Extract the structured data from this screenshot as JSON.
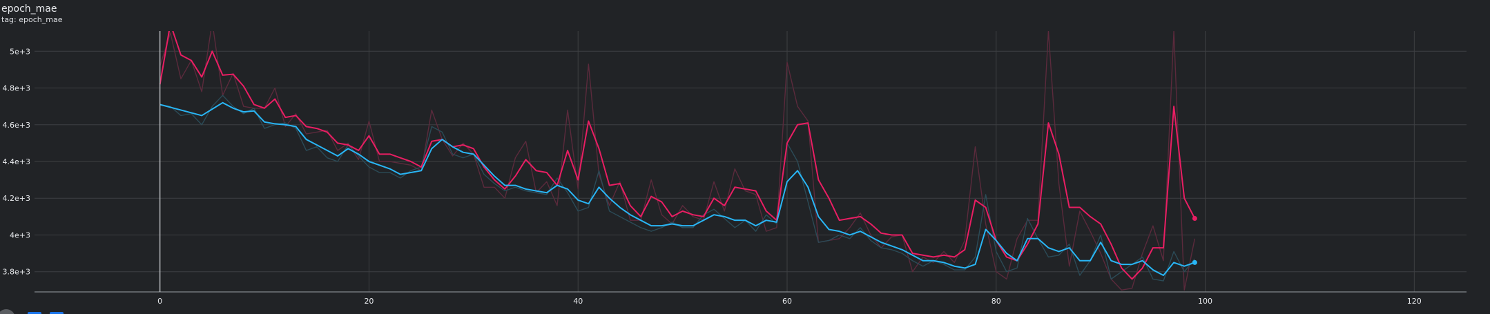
{
  "card": {
    "title": "epoch_mae",
    "subtitle": "tag: epoch_mae"
  },
  "colors": {
    "background": "#212326",
    "grid": "#3e4043",
    "axis": "#9aa0a6",
    "tick_text": "#e8eaed",
    "pink": "#e91e63",
    "cyan": "#29b6f6",
    "pink_raw": "#5b2a3c",
    "cyan_raw": "#2b4b57",
    "button_blue": "#1a73e8"
  },
  "icons": [
    "settings-icon",
    "fit-domain-icon",
    "download-icon"
  ],
  "chart_data": {
    "type": "line",
    "title": "epoch_mae",
    "xlabel": "",
    "ylabel": "",
    "xlim": [
      -12,
      125
    ],
    "ylim": [
      3690,
      5110
    ],
    "x_ticks": [
      0,
      20,
      40,
      60,
      80,
      100,
      120
    ],
    "x_tick_labels": [
      "0",
      "20",
      "40",
      "60",
      "80",
      "100",
      "120"
    ],
    "y_ticks": [
      3800,
      4000,
      4200,
      4400,
      4600,
      4800,
      5000
    ],
    "y_tick_labels": [
      "3.8e+3",
      "4e+3",
      "4.2e+3",
      "4.4e+3",
      "4.6e+3",
      "4.8e+3",
      "5e+3"
    ],
    "grid": true,
    "legend": "none",
    "series": [
      {
        "color": "#e91e63",
        "raw_color": "#5b2a3c",
        "x_start": 0,
        "smoothed": [
          4820,
          5150,
          4980,
          4950,
          4860,
          5000,
          4870,
          4875,
          4810,
          4710,
          4690,
          4740,
          4640,
          4650,
          4590,
          4580,
          4560,
          4500,
          4490,
          4460,
          4540,
          4440,
          4440,
          4420,
          4400,
          4370,
          4510,
          4520,
          4480,
          4490,
          4470,
          4370,
          4300,
          4250,
          4320,
          4410,
          4350,
          4340,
          4270,
          4460,
          4300,
          4620,
          4470,
          4270,
          4280,
          4160,
          4100,
          4210,
          4180,
          4100,
          4130,
          4110,
          4100,
          4200,
          4160,
          4260,
          4250,
          4240,
          4130,
          4080,
          4500,
          4600,
          4610,
          4300,
          4200,
          4080,
          4090,
          4100,
          4060,
          4010,
          4000,
          4000,
          3900,
          3890,
          3880,
          3890,
          3880,
          3920,
          4190,
          4150,
          3970,
          3880,
          3860,
          3950,
          4060,
          4610,
          4440,
          4150,
          4150,
          4100,
          4060,
          3950,
          3820,
          3760,
          3820,
          3930,
          3930,
          4700,
          4200,
          4090
        ],
        "raw": [
          4920,
          5100,
          4850,
          4950,
          4780,
          5160,
          4760,
          4880,
          4700,
          4690,
          4690,
          4800,
          4590,
          4660,
          4550,
          4560,
          4570,
          4460,
          4500,
          4410,
          4620,
          4400,
          4400,
          4390,
          4380,
          4350,
          4680,
          4520,
          4430,
          4500,
          4440,
          4260,
          4260,
          4200,
          4420,
          4510,
          4230,
          4290,
          4160,
          4680,
          4250,
          4930,
          4330,
          4160,
          4290,
          4080,
          4080,
          4300,
          4110,
          4060,
          4160,
          4100,
          4080,
          4290,
          4130,
          4360,
          4240,
          4220,
          4020,
          4040,
          4940,
          4700,
          4620,
          3960,
          3970,
          3980,
          4040,
          4120,
          4000,
          3930,
          3990,
          4000,
          3800,
          3880,
          3850,
          3910,
          3850,
          3970,
          4480,
          4060,
          3800,
          3760,
          3980,
          4080,
          4080,
          5110,
          4280,
          3830,
          4130,
          4020,
          3900,
          3760,
          3700,
          3710,
          3900,
          4050,
          3860,
          5110,
          3700,
          3980
        ]
      },
      {
        "color": "#29b6f6",
        "raw_color": "#2b4b57",
        "x_start": 0,
        "smoothed": [
          4710,
          4695,
          4680,
          4665,
          4650,
          4685,
          4720,
          4690,
          4670,
          4675,
          4615,
          4605,
          4600,
          4590,
          4520,
          4490,
          4460,
          4430,
          4470,
          4440,
          4400,
          4380,
          4360,
          4330,
          4340,
          4350,
          4470,
          4520,
          4480,
          4450,
          4440,
          4380,
          4320,
          4270,
          4270,
          4250,
          4240,
          4230,
          4270,
          4250,
          4190,
          4170,
          4260,
          4200,
          4150,
          4110,
          4080,
          4050,
          4050,
          4060,
          4050,
          4050,
          4080,
          4110,
          4100,
          4080,
          4080,
          4050,
          4080,
          4070,
          4290,
          4350,
          4260,
          4100,
          4030,
          4020,
          4000,
          4020,
          3990,
          3960,
          3940,
          3920,
          3890,
          3860,
          3860,
          3850,
          3830,
          3820,
          3840,
          4030,
          3970,
          3900,
          3860,
          3980,
          3980,
          3930,
          3910,
          3930,
          3860,
          3860,
          3960,
          3860,
          3840,
          3840,
          3860,
          3810,
          3780,
          3850,
          3830,
          3850
        ],
        "raw": [
          4710,
          4700,
          4650,
          4660,
          4600,
          4700,
          4760,
          4700,
          4660,
          4690,
          4580,
          4600,
          4610,
          4580,
          4460,
          4480,
          4420,
          4400,
          4490,
          4430,
          4370,
          4340,
          4340,
          4310,
          4350,
          4370,
          4590,
          4560,
          4440,
          4420,
          4440,
          4330,
          4280,
          4240,
          4260,
          4240,
          4230,
          4220,
          4310,
          4230,
          4130,
          4150,
          4350,
          4130,
          4100,
          4070,
          4040,
          4020,
          4040,
          4070,
          4040,
          4040,
          4110,
          4140,
          4090,
          4040,
          4080,
          4020,
          4110,
          4060,
          4500,
          4400,
          4180,
          3960,
          3970,
          4000,
          3980,
          4040,
          3970,
          3930,
          3920,
          3900,
          3860,
          3830,
          3860,
          3840,
          3810,
          3810,
          3880,
          4220,
          3910,
          3800,
          3820,
          4090,
          3980,
          3880,
          3890,
          3950,
          3780,
          3860,
          4000,
          3760,
          3800,
          3840,
          3880,
          3760,
          3750,
          3910,
          3800,
          3870
        ]
      }
    ]
  }
}
